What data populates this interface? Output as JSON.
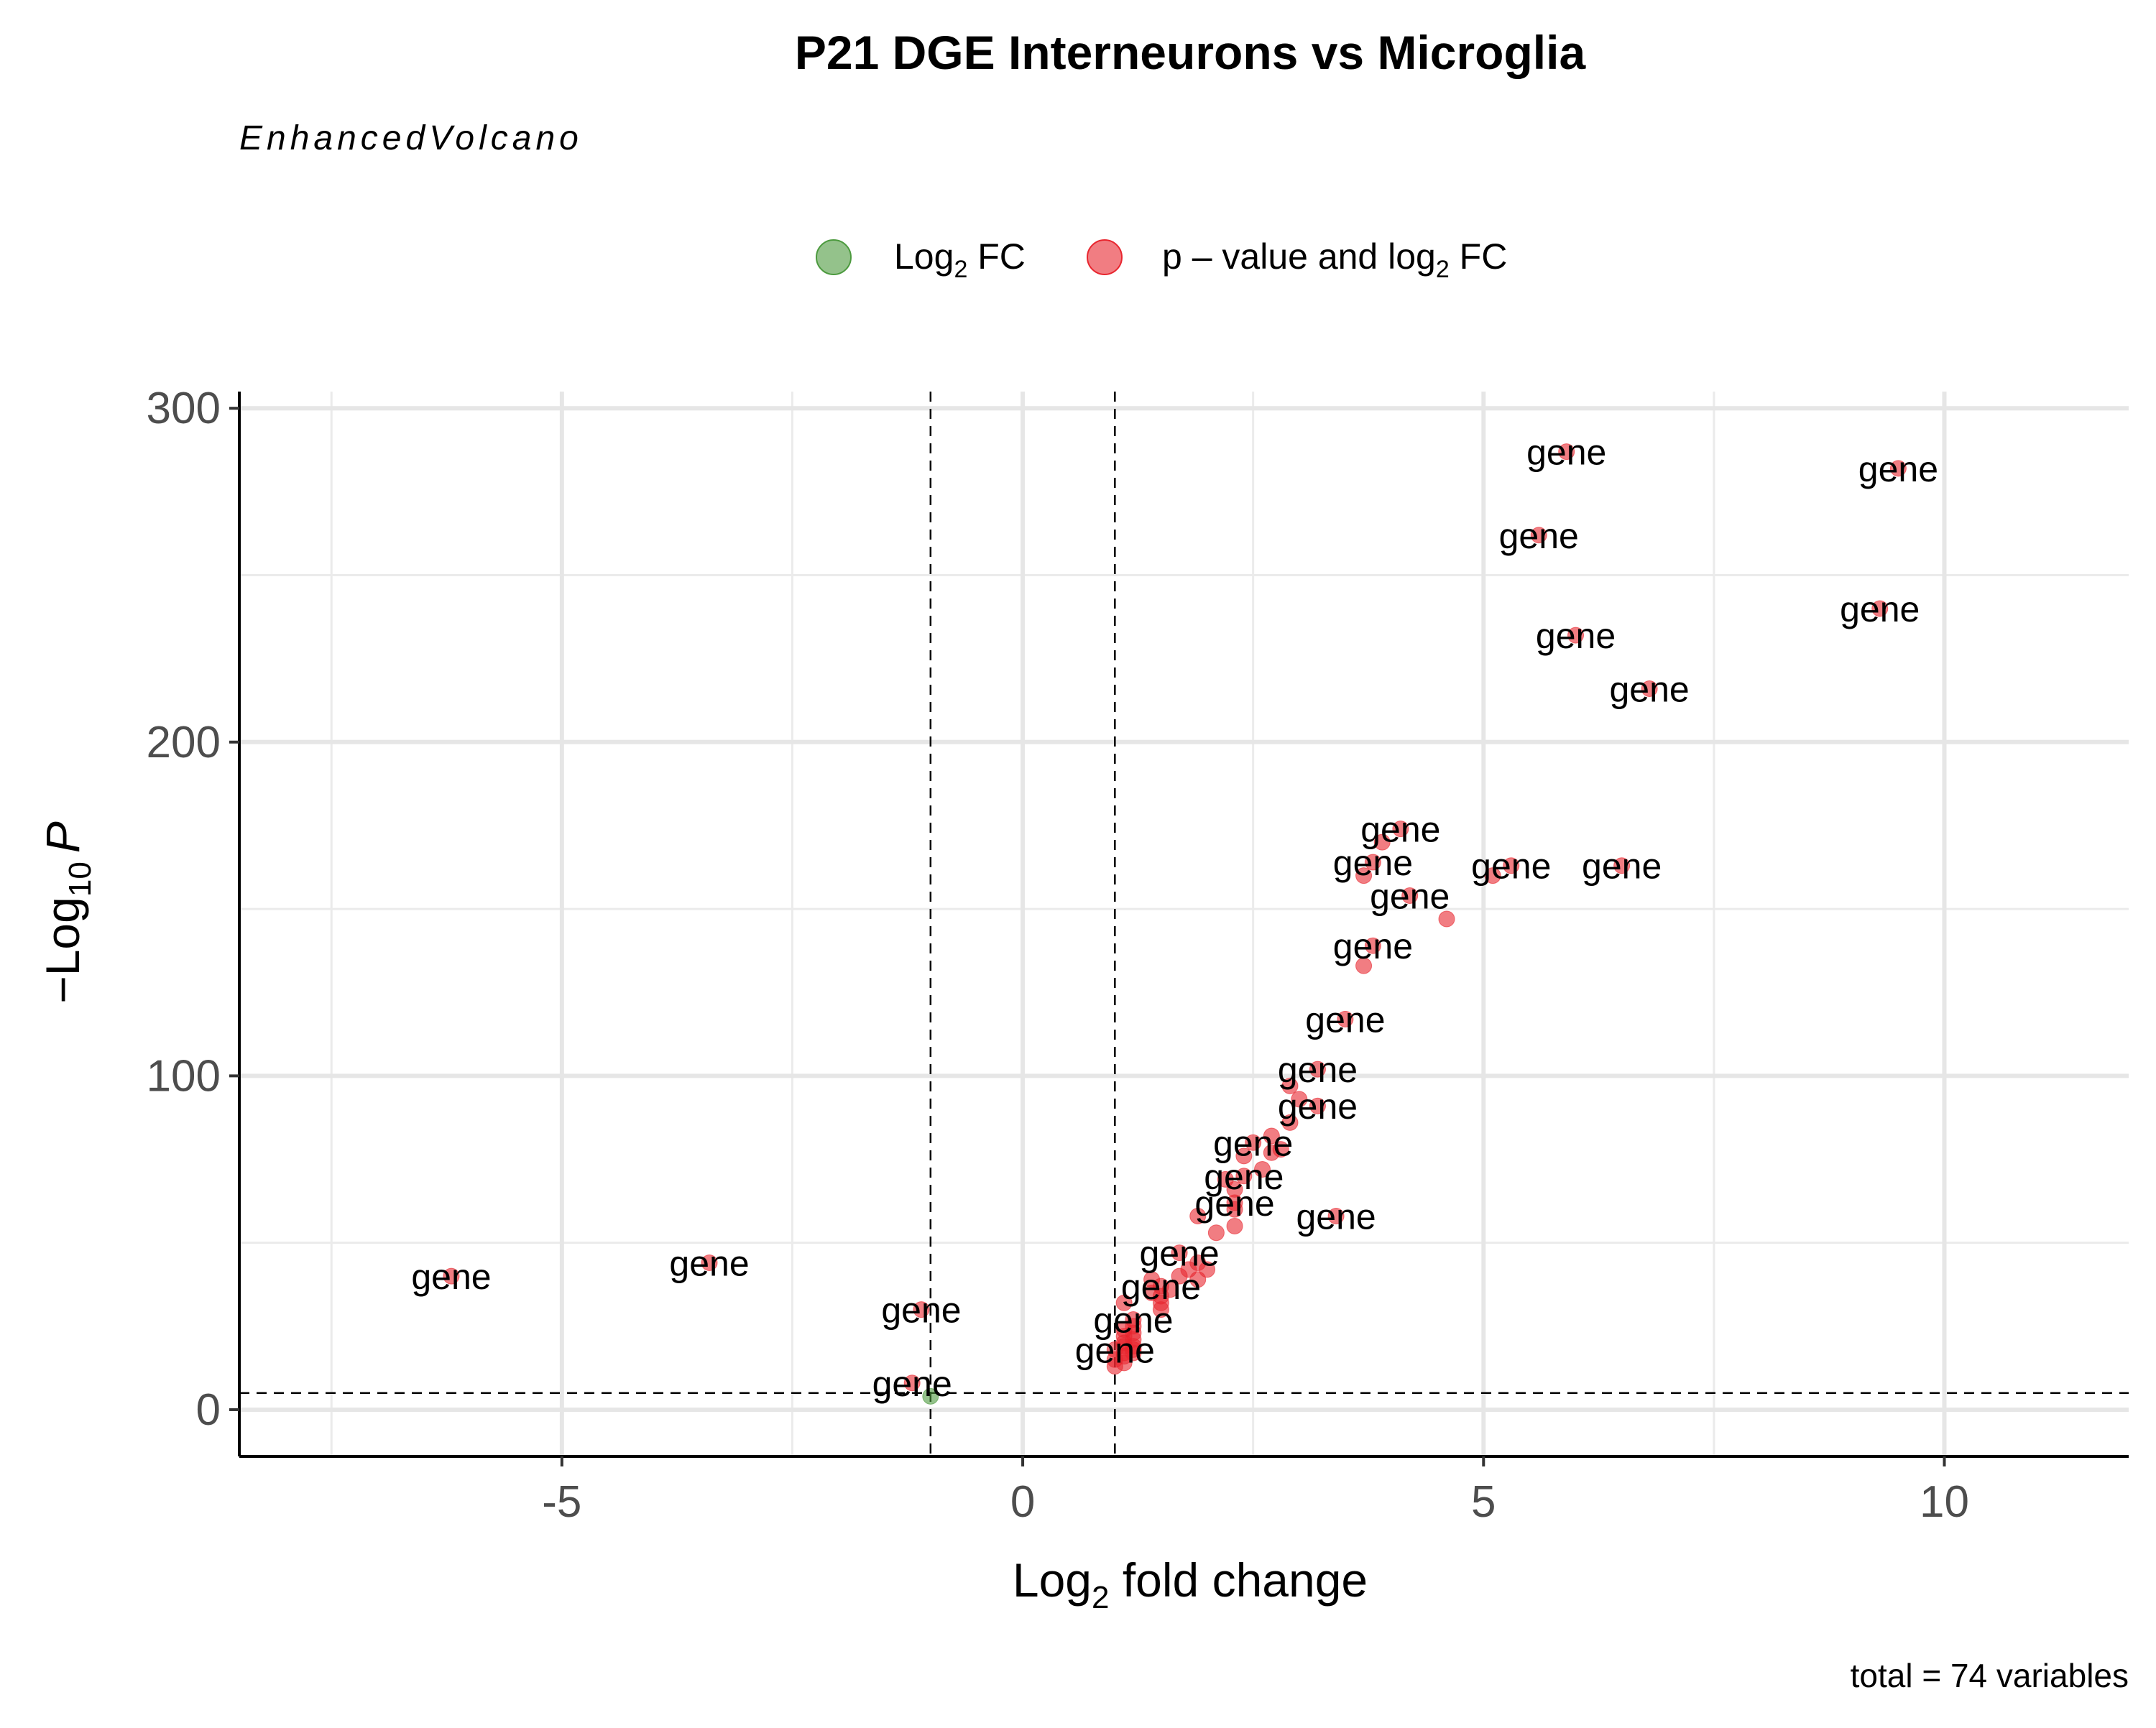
{
  "chart_data": {
    "type": "scatter",
    "title": "P21 DGE Interneurons vs Microglia",
    "subtitle": "EnhancedVolcano",
    "caption": "total = 74 variables",
    "xlabel": {
      "prefix": "Log",
      "sub": "2",
      "suffix": " fold change"
    },
    "ylabel": {
      "prefix": "−Log",
      "sub": "10",
      "suffix": "P"
    },
    "xlim": [
      -8.5,
      12
    ],
    "ylim": [
      -14,
      305
    ],
    "x_ticks": [
      -5,
      0,
      5,
      10
    ],
    "x_tick_labels": [
      "-5",
      "0",
      "5",
      "10"
    ],
    "y_ticks": [
      0,
      100,
      200,
      300
    ],
    "y_tick_labels": [
      "0",
      "100",
      "200",
      "300"
    ],
    "grid": true,
    "fc_cutoff": [
      -1,
      1
    ],
    "p_cutoff_line": 5,
    "legend_position": "top",
    "legend": [
      {
        "key": "log2fc",
        "prefix": "Log",
        "sub": "2",
        "suffix": " FC",
        "color": "#4c9a3e"
      },
      {
        "key": "both",
        "text": "p – value and log",
        "sub": "2",
        "suffix": " FC",
        "color": "#e8262f"
      }
    ],
    "point_label_text": "gene",
    "series": [
      {
        "key": "log2fc",
        "color": "#4c9a3e",
        "points": [
          {
            "x": -1.0,
            "y": 4
          }
        ]
      },
      {
        "key": "both",
        "color": "#e8262f",
        "points": [
          {
            "x": 5.9,
            "y": 287,
            "label": true
          },
          {
            "x": 9.5,
            "y": 282,
            "label": true
          },
          {
            "x": 5.6,
            "y": 262,
            "label": true
          },
          {
            "x": 9.3,
            "y": 240,
            "label": true
          },
          {
            "x": 6.0,
            "y": 232,
            "label": true
          },
          {
            "x": 6.8,
            "y": 216,
            "label": true
          },
          {
            "x": 4.1,
            "y": 174,
            "label": true
          },
          {
            "x": 3.9,
            "y": 170
          },
          {
            "x": 3.8,
            "y": 164,
            "label": true
          },
          {
            "x": 3.7,
            "y": 160
          },
          {
            "x": 5.3,
            "y": 163,
            "label": true
          },
          {
            "x": 5.1,
            "y": 160
          },
          {
            "x": 6.5,
            "y": 163,
            "label": true
          },
          {
            "x": 4.2,
            "y": 154,
            "label": true
          },
          {
            "x": 4.6,
            "y": 147
          },
          {
            "x": 3.8,
            "y": 139,
            "label": true
          },
          {
            "x": 3.7,
            "y": 133
          },
          {
            "x": 3.5,
            "y": 117,
            "label": true
          },
          {
            "x": 3.2,
            "y": 102,
            "label": true
          },
          {
            "x": 2.9,
            "y": 97
          },
          {
            "x": 3.0,
            "y": 93
          },
          {
            "x": 3.2,
            "y": 91,
            "label": true
          },
          {
            "x": 2.9,
            "y": 86
          },
          {
            "x": 2.7,
            "y": 82
          },
          {
            "x": 2.5,
            "y": 80,
            "label": true
          },
          {
            "x": 2.8,
            "y": 78
          },
          {
            "x": 2.7,
            "y": 77
          },
          {
            "x": 2.4,
            "y": 76
          },
          {
            "x": 2.6,
            "y": 72
          },
          {
            "x": 2.4,
            "y": 70,
            "label": true
          },
          {
            "x": 2.2,
            "y": 69
          },
          {
            "x": 2.3,
            "y": 66
          },
          {
            "x": 2.3,
            "y": 62,
            "label": true
          },
          {
            "x": 2.3,
            "y": 60
          },
          {
            "x": 1.9,
            "y": 58
          },
          {
            "x": 3.4,
            "y": 58,
            "label": true
          },
          {
            "x": 2.3,
            "y": 55
          },
          {
            "x": 2.1,
            "y": 53
          },
          {
            "x": 1.7,
            "y": 47,
            "label": true
          },
          {
            "x": 1.9,
            "y": 44
          },
          {
            "x": 1.8,
            "y": 42
          },
          {
            "x": 2.0,
            "y": 42
          },
          {
            "x": 1.7,
            "y": 40
          },
          {
            "x": 1.9,
            "y": 39
          },
          {
            "x": 1.4,
            "y": 39
          },
          {
            "x": 1.5,
            "y": 37,
            "label": true
          },
          {
            "x": 1.6,
            "y": 36
          },
          {
            "x": 1.4,
            "y": 35
          },
          {
            "x": 1.5,
            "y": 34
          },
          {
            "x": 1.5,
            "y": 32
          },
          {
            "x": 1.1,
            "y": 32
          },
          {
            "x": 1.5,
            "y": 30
          },
          {
            "x": 1.2,
            "y": 27,
            "label": true
          },
          {
            "x": 1.2,
            "y": 25
          },
          {
            "x": 1.1,
            "y": 24
          },
          {
            "x": 1.2,
            "y": 23
          },
          {
            "x": 1.1,
            "y": 22
          },
          {
            "x": 1.2,
            "y": 21
          },
          {
            "x": 1.1,
            "y": 20
          },
          {
            "x": 1.2,
            "y": 19
          },
          {
            "x": 1.1,
            "y": 19
          },
          {
            "x": 1.2,
            "y": 18
          },
          {
            "x": 1.0,
            "y": 18,
            "label": true
          },
          {
            "x": 1.1,
            "y": 17
          },
          {
            "x": 1.2,
            "y": 17
          },
          {
            "x": 1.1,
            "y": 16
          },
          {
            "x": 1.0,
            "y": 15
          },
          {
            "x": 1.1,
            "y": 14
          },
          {
            "x": 1.0,
            "y": 13
          },
          {
            "x": -6.2,
            "y": 40,
            "label": true
          },
          {
            "x": -3.4,
            "y": 44,
            "label": true
          },
          {
            "x": -1.1,
            "y": 30,
            "label": true
          },
          {
            "x": -1.2,
            "y": 8,
            "label": true
          }
        ]
      }
    ]
  }
}
